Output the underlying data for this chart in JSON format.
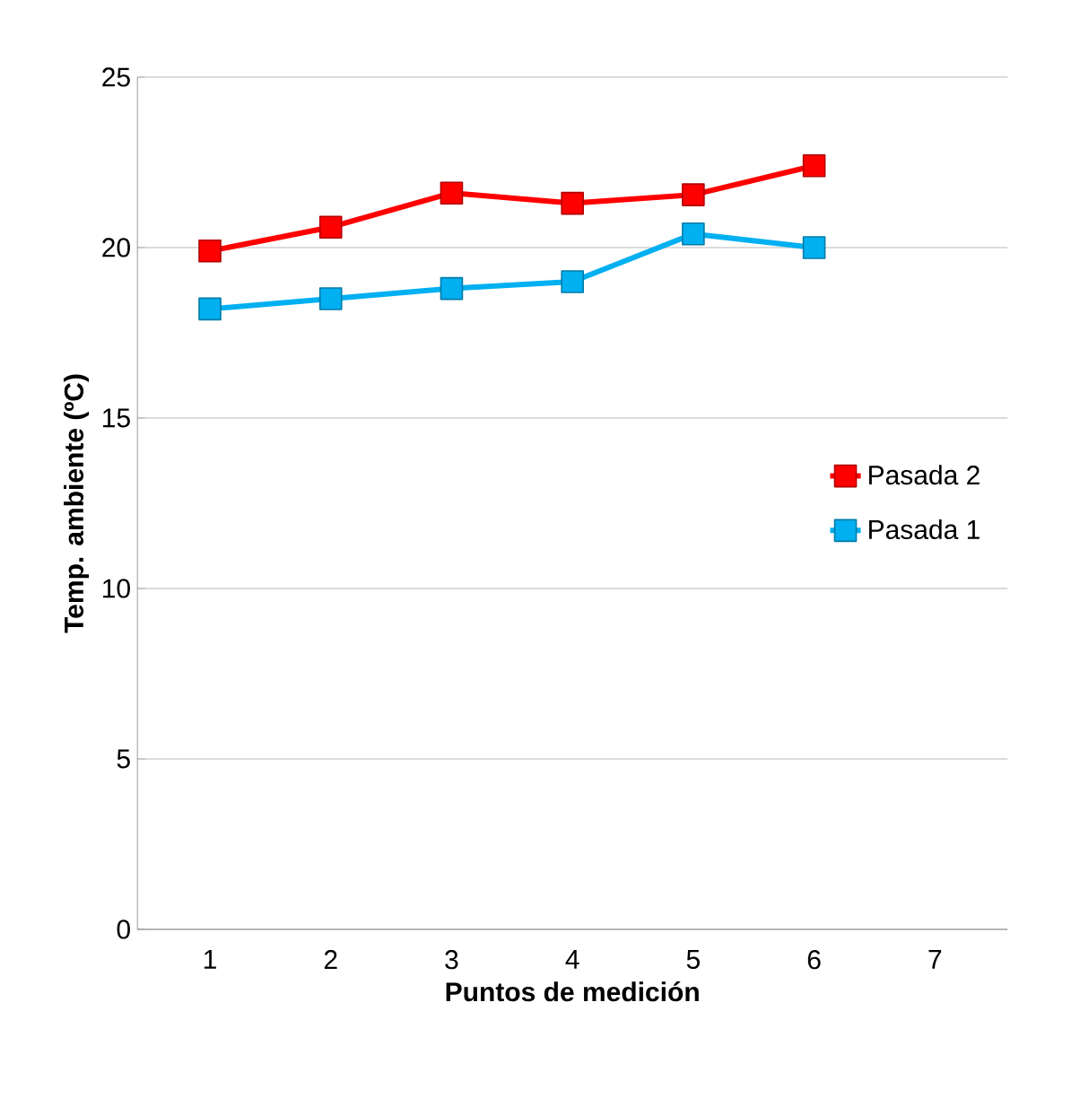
{
  "chart_data": {
    "type": "line",
    "xlabel": "Puntos de medición",
    "ylabel": "Temp. ambiente (ºC)",
    "categories": [
      "1",
      "2",
      "3",
      "4",
      "5",
      "6",
      "7"
    ],
    "series": [
      {
        "name": "Pasada 2",
        "color": "#ff0000",
        "values": [
          19.9,
          20.6,
          21.6,
          21.3,
          21.55,
          22.4,
          null
        ]
      },
      {
        "name": "Pasada 1",
        "color": "#00b0f0",
        "values": [
          18.2,
          18.5,
          18.8,
          19.0,
          20.4,
          20.0,
          null
        ]
      }
    ],
    "ylim": [
      0,
      25
    ],
    "yticks": [
      0,
      5,
      10,
      15,
      20,
      25
    ],
    "grid": "y",
    "legend": "right",
    "marker": "square",
    "line_style": "solid"
  }
}
